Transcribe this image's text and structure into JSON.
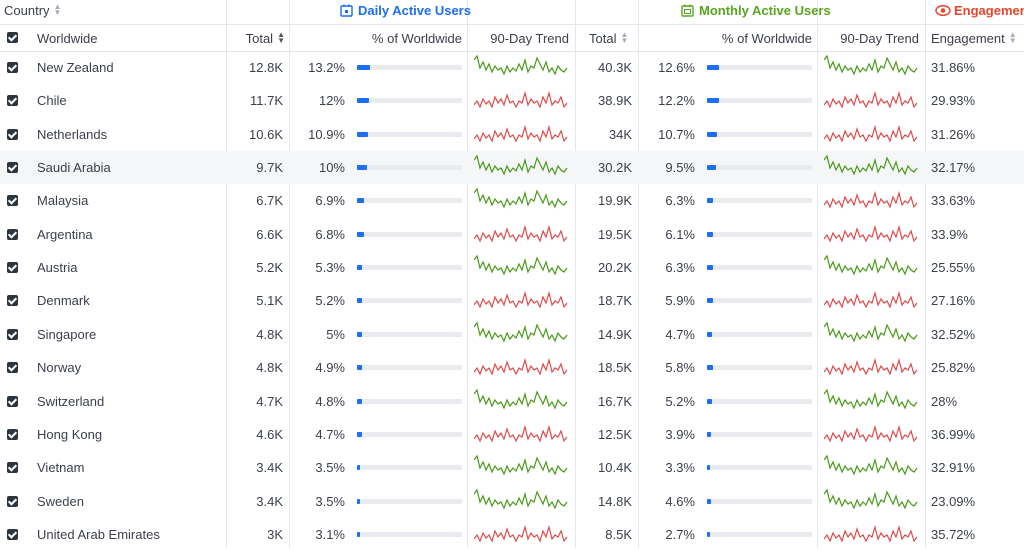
{
  "header": {
    "country_label": "Country",
    "daily_group": "Daily Active Users",
    "monthly_group": "Monthly Active Users",
    "engagement_group": "Engagement",
    "worldwide": "Worldwide",
    "total": "Total",
    "pct_worldwide": "% of Worldwide",
    "trend": "90-Day Trend",
    "engagement": "Engagement"
  },
  "colors": {
    "blue": "#1c6ef2",
    "green": "#4a9a1a",
    "red": "#e04a4a",
    "engagement": "#e8452c",
    "monthly": "#5aa51f"
  },
  "rows": [
    {
      "country": "New Zealand",
      "dau_total": "12.8K",
      "dau_pct": "13.2%",
      "dau_frac": 0.132,
      "dau_trend": "up",
      "mau_total": "40.3K",
      "mau_pct": "12.6%",
      "mau_frac": 0.126,
      "mau_trend": "up",
      "engagement": "31.86%"
    },
    {
      "country": "Chile",
      "dau_total": "11.7K",
      "dau_pct": "12%",
      "dau_frac": 0.12,
      "dau_trend": "down",
      "mau_total": "38.9K",
      "mau_pct": "12.2%",
      "mau_frac": 0.122,
      "mau_trend": "down",
      "engagement": "29.93%"
    },
    {
      "country": "Netherlands",
      "dau_total": "10.6K",
      "dau_pct": "10.9%",
      "dau_frac": 0.109,
      "dau_trend": "down",
      "mau_total": "34K",
      "mau_pct": "10.7%",
      "mau_frac": 0.107,
      "mau_trend": "down",
      "engagement": "31.26%"
    },
    {
      "country": "Saudi Arabia",
      "dau_total": "9.7K",
      "dau_pct": "10%",
      "dau_frac": 0.1,
      "dau_trend": "up",
      "mau_total": "30.2K",
      "mau_pct": "9.5%",
      "mau_frac": 0.095,
      "mau_trend": "up",
      "engagement": "32.17%"
    },
    {
      "country": "Malaysia",
      "dau_total": "6.7K",
      "dau_pct": "6.9%",
      "dau_frac": 0.069,
      "dau_trend": "up",
      "mau_total": "19.9K",
      "mau_pct": "6.3%",
      "mau_frac": 0.063,
      "mau_trend": "down",
      "engagement": "33.63%"
    },
    {
      "country": "Argentina",
      "dau_total": "6.6K",
      "dau_pct": "6.8%",
      "dau_frac": 0.068,
      "dau_trend": "down",
      "mau_total": "19.5K",
      "mau_pct": "6.1%",
      "mau_frac": 0.061,
      "mau_trend": "down",
      "engagement": "33.9%"
    },
    {
      "country": "Austria",
      "dau_total": "5.2K",
      "dau_pct": "5.3%",
      "dau_frac": 0.053,
      "dau_trend": "up",
      "mau_total": "20.2K",
      "mau_pct": "6.3%",
      "mau_frac": 0.063,
      "mau_trend": "up",
      "engagement": "25.55%"
    },
    {
      "country": "Denmark",
      "dau_total": "5.1K",
      "dau_pct": "5.2%",
      "dau_frac": 0.052,
      "dau_trend": "down",
      "mau_total": "18.7K",
      "mau_pct": "5.9%",
      "mau_frac": 0.059,
      "mau_trend": "down",
      "engagement": "27.16%"
    },
    {
      "country": "Singapore",
      "dau_total": "4.8K",
      "dau_pct": "5%",
      "dau_frac": 0.05,
      "dau_trend": "up",
      "mau_total": "14.9K",
      "mau_pct": "4.7%",
      "mau_frac": 0.047,
      "mau_trend": "up",
      "engagement": "32.52%"
    },
    {
      "country": "Norway",
      "dau_total": "4.8K",
      "dau_pct": "4.9%",
      "dau_frac": 0.049,
      "dau_trend": "down",
      "mau_total": "18.5K",
      "mau_pct": "5.8%",
      "mau_frac": 0.058,
      "mau_trend": "down",
      "engagement": "25.82%"
    },
    {
      "country": "Switzerland",
      "dau_total": "4.7K",
      "dau_pct": "4.8%",
      "dau_frac": 0.048,
      "dau_trend": "up",
      "mau_total": "16.7K",
      "mau_pct": "5.2%",
      "mau_frac": 0.052,
      "mau_trend": "up",
      "engagement": "28%"
    },
    {
      "country": "Hong Kong",
      "dau_total": "4.6K",
      "dau_pct": "4.7%",
      "dau_frac": 0.047,
      "dau_trend": "down",
      "mau_total": "12.5K",
      "mau_pct": "3.9%",
      "mau_frac": 0.039,
      "mau_trend": "down",
      "engagement": "36.99%"
    },
    {
      "country": "Vietnam",
      "dau_total": "3.4K",
      "dau_pct": "3.5%",
      "dau_frac": 0.035,
      "dau_trend": "up",
      "mau_total": "10.4K",
      "mau_pct": "3.3%",
      "mau_frac": 0.033,
      "mau_trend": "up",
      "engagement": "32.91%"
    },
    {
      "country": "Sweden",
      "dau_total": "3.4K",
      "dau_pct": "3.5%",
      "dau_frac": 0.035,
      "dau_trend": "up",
      "mau_total": "14.8K",
      "mau_pct": "4.6%",
      "mau_frac": 0.046,
      "mau_trend": "up",
      "engagement": "23.09%"
    },
    {
      "country": "United Arab Emirates",
      "dau_total": "3K",
      "dau_pct": "3.1%",
      "dau_frac": 0.031,
      "dau_trend": "down",
      "mau_total": "8.5K",
      "mau_pct": "2.7%",
      "mau_frac": 0.027,
      "mau_trend": "down",
      "engagement": "35.72%"
    }
  ]
}
